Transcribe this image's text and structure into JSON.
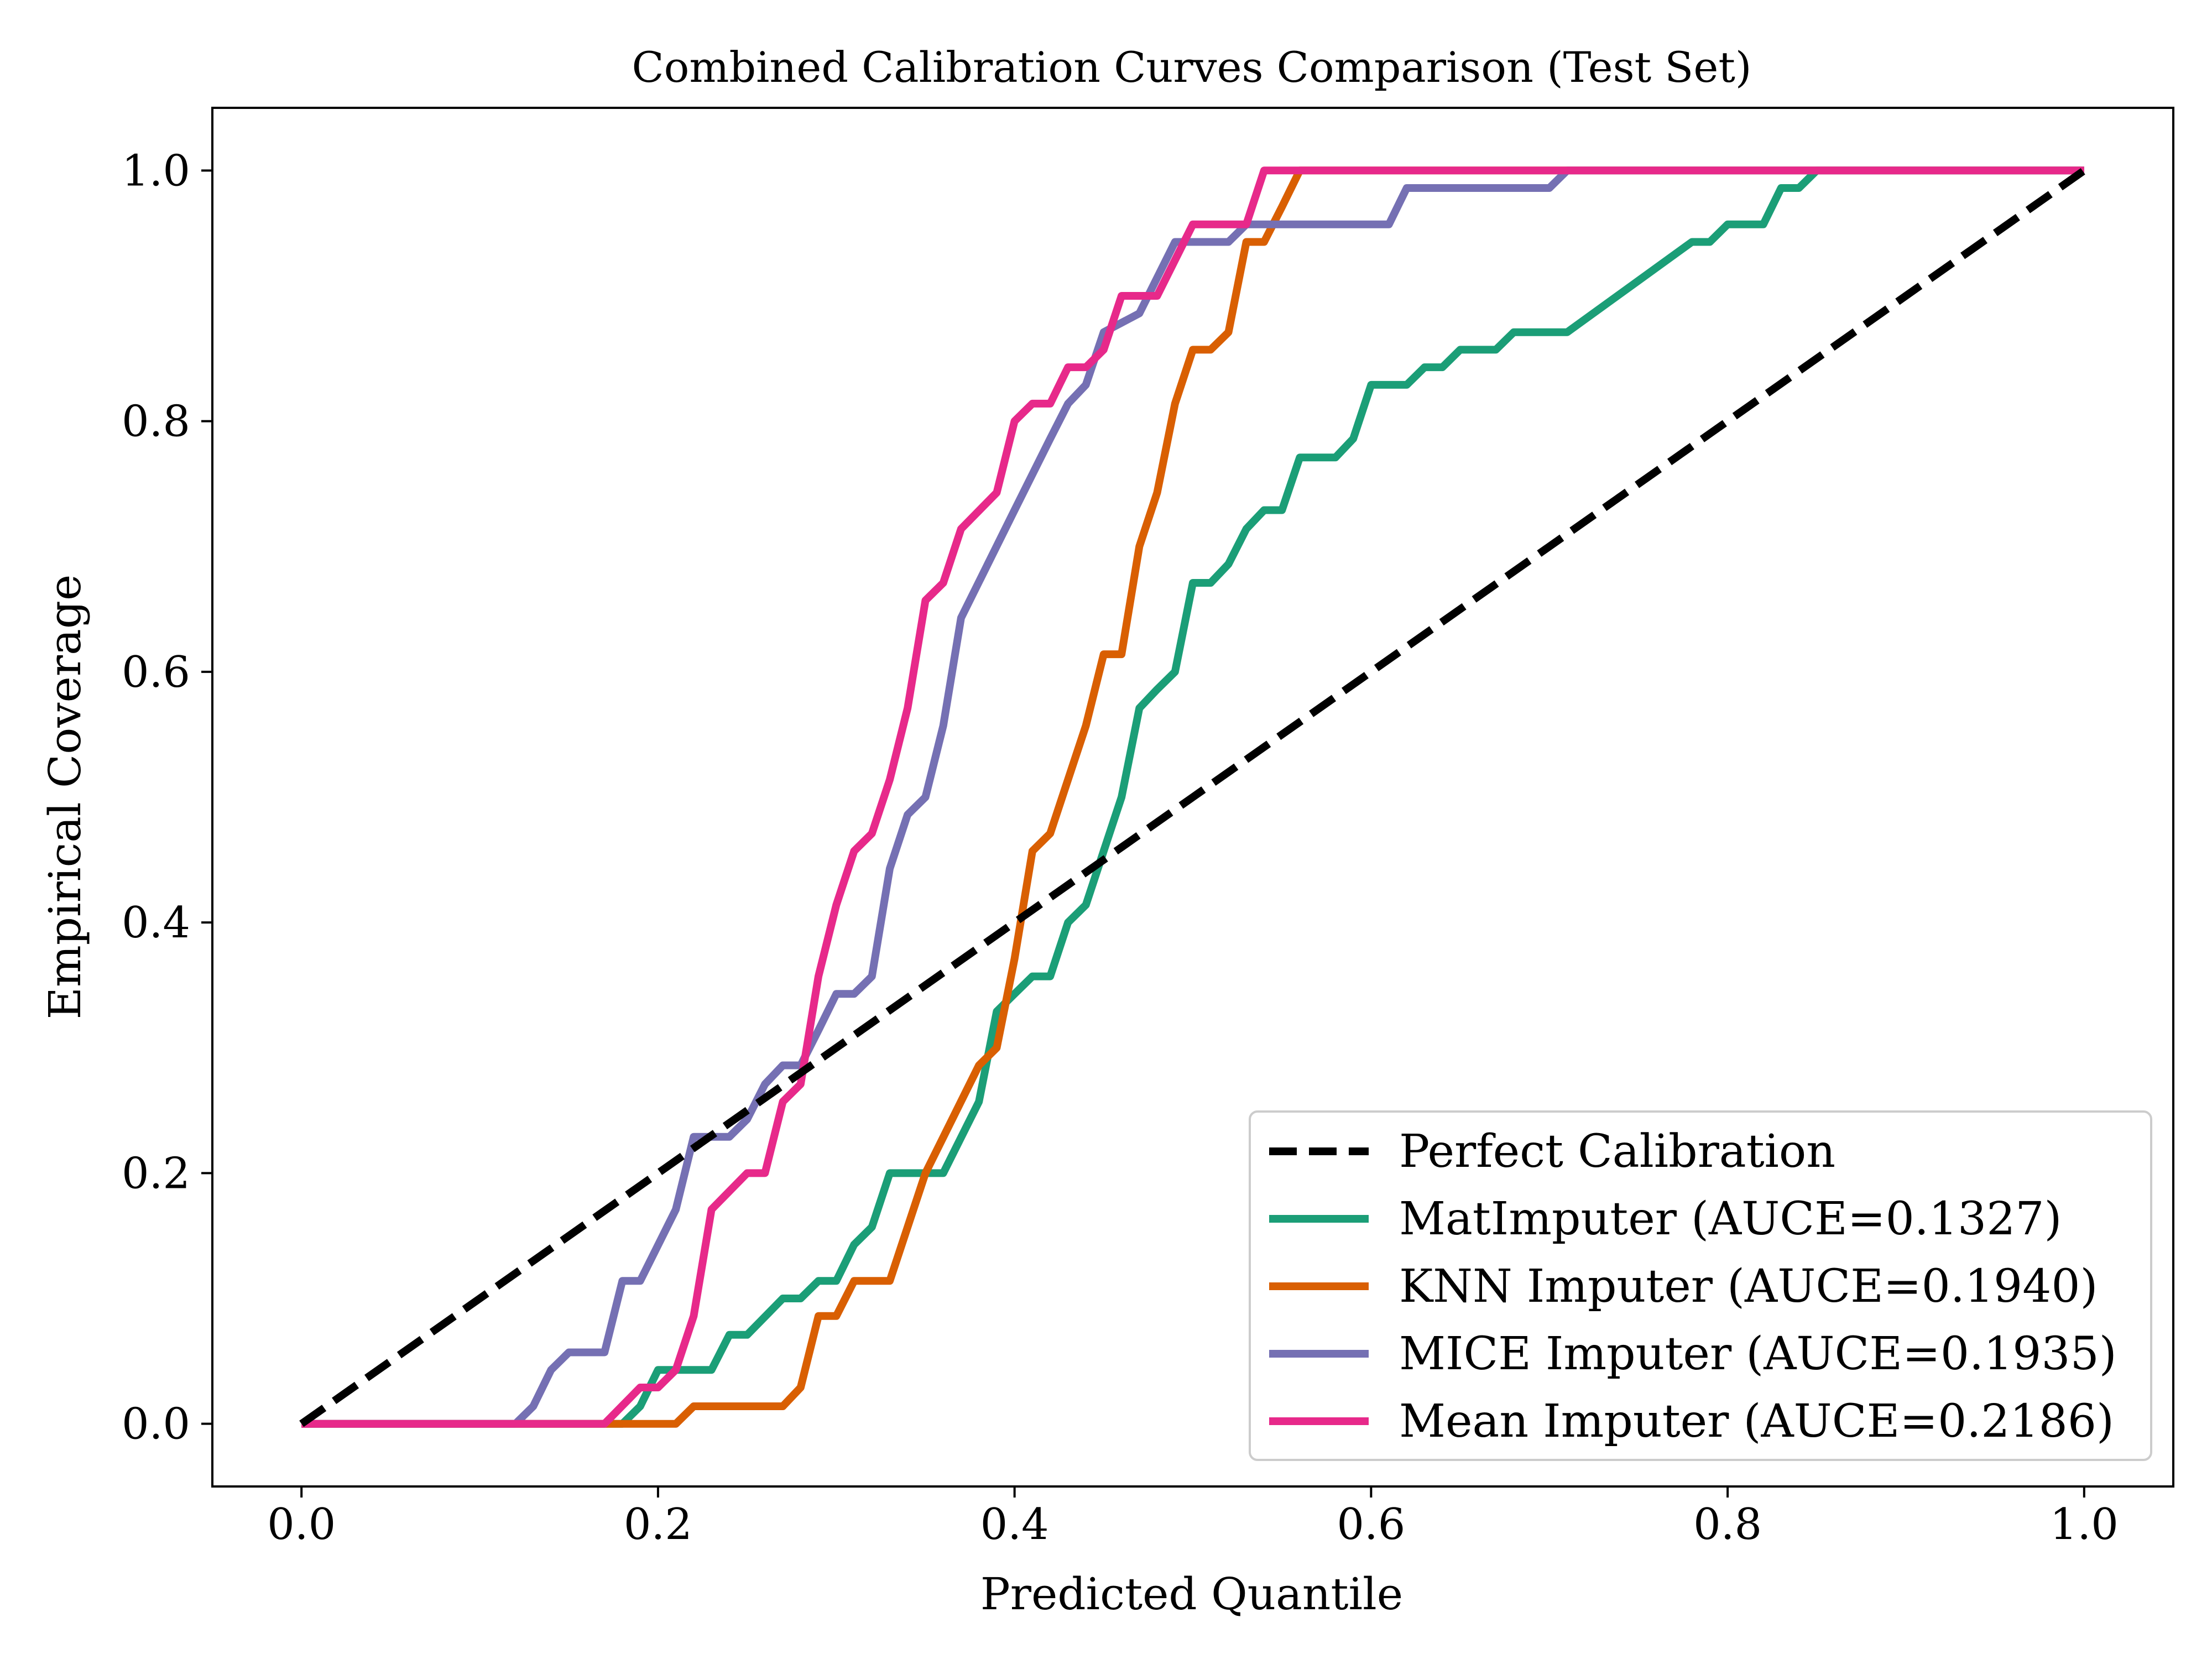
{
  "chart_data": {
    "type": "line",
    "title": "Combined Calibration Curves Comparison (Test Set)",
    "xlabel": "Predicted Quantile",
    "ylabel": "Empirical Coverage",
    "xlim": [
      -0.05,
      1.05
    ],
    "ylim": [
      -0.05,
      1.05
    ],
    "xticks": [
      "0.0",
      "0.2",
      "0.4",
      "0.6",
      "0.8",
      "1.0"
    ],
    "yticks": [
      "0.0",
      "0.2",
      "0.4",
      "0.6",
      "0.8",
      "1.0"
    ],
    "grid": false,
    "legend_position": "bottom-right",
    "series": [
      {
        "name": "Perfect Calibration",
        "color": "#000000",
        "dashed": true,
        "points": [
          [
            0.0,
            0.0
          ],
          [
            1.0,
            1.0
          ]
        ]
      },
      {
        "name": "MatImputer (AUCE=0.1327)",
        "color": "#1b9e77",
        "dashed": false,
        "points": [
          [
            0.0,
            0.0
          ],
          [
            0.18,
            0.0
          ],
          [
            0.19,
            0.014
          ],
          [
            0.2,
            0.043
          ],
          [
            0.21,
            0.043
          ],
          [
            0.23,
            0.043
          ],
          [
            0.24,
            0.071
          ],
          [
            0.25,
            0.071
          ],
          [
            0.27,
            0.1
          ],
          [
            0.28,
            0.1
          ],
          [
            0.29,
            0.114
          ],
          [
            0.3,
            0.114
          ],
          [
            0.31,
            0.143
          ],
          [
            0.32,
            0.157
          ],
          [
            0.33,
            0.2
          ],
          [
            0.36,
            0.2
          ],
          [
            0.38,
            0.257
          ],
          [
            0.39,
            0.329
          ],
          [
            0.4,
            0.343
          ],
          [
            0.41,
            0.357
          ],
          [
            0.42,
            0.357
          ],
          [
            0.43,
            0.4
          ],
          [
            0.44,
            0.414
          ],
          [
            0.45,
            0.457
          ],
          [
            0.46,
            0.5
          ],
          [
            0.47,
            0.571
          ],
          [
            0.48,
            0.586
          ],
          [
            0.49,
            0.6
          ],
          [
            0.5,
            0.671
          ],
          [
            0.51,
            0.671
          ],
          [
            0.52,
            0.686
          ],
          [
            0.53,
            0.714
          ],
          [
            0.54,
            0.729
          ],
          [
            0.55,
            0.729
          ],
          [
            0.56,
            0.771
          ],
          [
            0.58,
            0.771
          ],
          [
            0.59,
            0.786
          ],
          [
            0.6,
            0.829
          ],
          [
            0.62,
            0.829
          ],
          [
            0.63,
            0.843
          ],
          [
            0.64,
            0.843
          ],
          [
            0.65,
            0.857
          ],
          [
            0.67,
            0.857
          ],
          [
            0.68,
            0.871
          ],
          [
            0.71,
            0.871
          ],
          [
            0.78,
            0.943
          ],
          [
            0.79,
            0.943
          ],
          [
            0.8,
            0.957
          ],
          [
            0.82,
            0.957
          ],
          [
            0.83,
            0.986
          ],
          [
            0.84,
            0.986
          ],
          [
            0.85,
            1.0
          ],
          [
            1.0,
            1.0
          ]
        ]
      },
      {
        "name": "KNN Imputer (AUCE=0.1940)",
        "color": "#d95f02",
        "dashed": false,
        "points": [
          [
            0.0,
            0.0
          ],
          [
            0.21,
            0.0
          ],
          [
            0.22,
            0.014
          ],
          [
            0.27,
            0.014
          ],
          [
            0.28,
            0.029
          ],
          [
            0.29,
            0.086
          ],
          [
            0.3,
            0.086
          ],
          [
            0.31,
            0.114
          ],
          [
            0.33,
            0.114
          ],
          [
            0.35,
            0.2
          ],
          [
            0.38,
            0.286
          ],
          [
            0.39,
            0.3
          ],
          [
            0.4,
            0.371
          ],
          [
            0.41,
            0.457
          ],
          [
            0.42,
            0.471
          ],
          [
            0.43,
            0.514
          ],
          [
            0.44,
            0.557
          ],
          [
            0.45,
            0.614
          ],
          [
            0.46,
            0.614
          ],
          [
            0.47,
            0.7
          ],
          [
            0.48,
            0.743
          ],
          [
            0.49,
            0.814
          ],
          [
            0.5,
            0.857
          ],
          [
            0.51,
            0.857
          ],
          [
            0.52,
            0.871
          ],
          [
            0.53,
            0.943
          ],
          [
            0.54,
            0.943
          ],
          [
            0.55,
            0.971
          ],
          [
            0.56,
            1.0
          ],
          [
            1.0,
            1.0
          ]
        ]
      },
      {
        "name": "MICE Imputer (AUCE=0.1935)",
        "color": "#7570b3",
        "dashed": false,
        "points": [
          [
            0.0,
            0.0
          ],
          [
            0.12,
            0.0
          ],
          [
            0.13,
            0.014
          ],
          [
            0.14,
            0.043
          ],
          [
            0.15,
            0.057
          ],
          [
            0.17,
            0.057
          ],
          [
            0.18,
            0.114
          ],
          [
            0.19,
            0.114
          ],
          [
            0.21,
            0.171
          ],
          [
            0.22,
            0.229
          ],
          [
            0.24,
            0.229
          ],
          [
            0.25,
            0.243
          ],
          [
            0.26,
            0.271
          ],
          [
            0.27,
            0.286
          ],
          [
            0.28,
            0.286
          ],
          [
            0.29,
            0.314
          ],
          [
            0.3,
            0.343
          ],
          [
            0.31,
            0.343
          ],
          [
            0.32,
            0.357
          ],
          [
            0.33,
            0.443
          ],
          [
            0.34,
            0.486
          ],
          [
            0.35,
            0.5
          ],
          [
            0.36,
            0.557
          ],
          [
            0.37,
            0.643
          ],
          [
            0.4,
            0.729
          ],
          [
            0.42,
            0.786
          ],
          [
            0.43,
            0.814
          ],
          [
            0.44,
            0.829
          ],
          [
            0.45,
            0.871
          ],
          [
            0.47,
            0.886
          ],
          [
            0.49,
            0.943
          ],
          [
            0.52,
            0.943
          ],
          [
            0.53,
            0.957
          ],
          [
            0.61,
            0.957
          ],
          [
            0.62,
            0.986
          ],
          [
            0.7,
            0.986
          ],
          [
            0.71,
            1.0
          ],
          [
            1.0,
            1.0
          ]
        ]
      },
      {
        "name": "Mean Imputer (AUCE=0.2186)",
        "color": "#e7298a",
        "dashed": false,
        "points": [
          [
            0.0,
            0.0
          ],
          [
            0.17,
            0.0
          ],
          [
            0.19,
            0.029
          ],
          [
            0.2,
            0.029
          ],
          [
            0.21,
            0.043
          ],
          [
            0.22,
            0.086
          ],
          [
            0.23,
            0.171
          ],
          [
            0.25,
            0.2
          ],
          [
            0.26,
            0.2
          ],
          [
            0.27,
            0.257
          ],
          [
            0.28,
            0.271
          ],
          [
            0.29,
            0.357
          ],
          [
            0.3,
            0.414
          ],
          [
            0.31,
            0.457
          ],
          [
            0.32,
            0.471
          ],
          [
            0.33,
            0.514
          ],
          [
            0.34,
            0.571
          ],
          [
            0.35,
            0.657
          ],
          [
            0.36,
            0.671
          ],
          [
            0.37,
            0.714
          ],
          [
            0.39,
            0.743
          ],
          [
            0.4,
            0.8
          ],
          [
            0.41,
            0.814
          ],
          [
            0.42,
            0.814
          ],
          [
            0.43,
            0.843
          ],
          [
            0.44,
            0.843
          ],
          [
            0.45,
            0.857
          ],
          [
            0.46,
            0.9
          ],
          [
            0.48,
            0.9
          ],
          [
            0.5,
            0.957
          ],
          [
            0.53,
            0.957
          ],
          [
            0.54,
            1.0
          ],
          [
            1.0,
            1.0
          ]
        ]
      }
    ]
  }
}
